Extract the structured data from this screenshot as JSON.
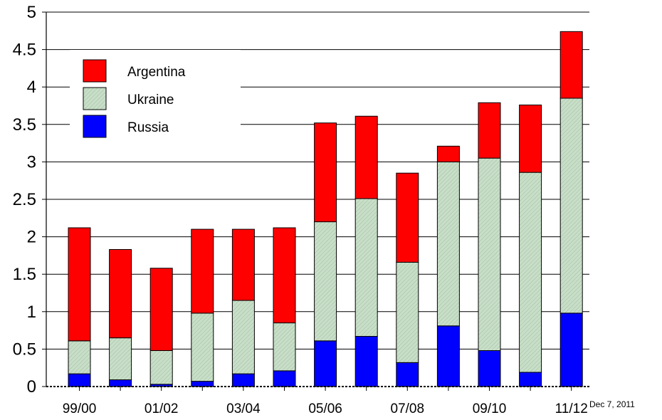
{
  "chart_data": {
    "type": "bar",
    "stacked": true,
    "categories": [
      "99/00",
      "",
      "01/02",
      "",
      "03/04",
      "",
      "05/06",
      "",
      "07/08",
      "",
      "09/10",
      "",
      "11/12"
    ],
    "series": [
      {
        "name": "Russia",
        "color": "#0000ff",
        "values": [
          0.17,
          0.09,
          0.03,
          0.07,
          0.17,
          0.21,
          0.61,
          0.67,
          0.32,
          0.81,
          0.48,
          0.19,
          0.98
        ]
      },
      {
        "name": "Ukraine",
        "color": "#c6dcc6",
        "values": [
          0.44,
          0.56,
          0.45,
          0.91,
          0.98,
          0.64,
          1.59,
          1.84,
          1.34,
          2.19,
          2.57,
          2.67,
          2.87
        ]
      },
      {
        "name": "Argentina",
        "color": "#ff0000",
        "values": [
          1.51,
          1.18,
          1.1,
          1.12,
          0.95,
          1.27,
          1.32,
          1.1,
          1.19,
          0.21,
          0.74,
          0.9,
          0.89
        ]
      }
    ],
    "ylim": [
      0,
      5
    ],
    "yticks": [
      "0",
      "0.5",
      "1",
      "1.5",
      "2",
      "2.5",
      "3",
      "3.5",
      "4",
      "4.5",
      "5"
    ],
    "grid": true,
    "legend_position": "top-left",
    "legend_order": [
      "Argentina",
      "Ukraine",
      "Russia"
    ],
    "annotation": "Dec 7, 2011"
  }
}
